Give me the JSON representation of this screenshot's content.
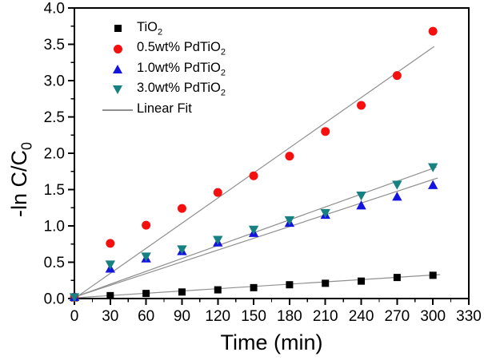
{
  "chart_data": {
    "type": "scatter",
    "title": "",
    "xlabel": "Time (min)",
    "ylabel_pre": "-ln C/C",
    "ylabel_sub": "0",
    "xlim": [
      0,
      330
    ],
    "ylim": [
      0,
      4.0
    ],
    "x_major_step": 30,
    "x_minor_step": 15,
    "y_major_step": 0.5,
    "y_minor_step": 0.25,
    "x_tick_labels": [
      "0",
      "30",
      "60",
      "90",
      "120",
      "150",
      "180",
      "210",
      "240",
      "270",
      "300",
      "330"
    ],
    "y_tick_labels": [
      "0.0",
      "0.5",
      "1.0",
      "1.5",
      "2.0",
      "2.5",
      "3.0",
      "3.5",
      "4.0"
    ],
    "grid": false,
    "legend_position": "upper-left-inside",
    "axis_color": "#000000",
    "fit_line_color": "#8f8f8f",
    "x": [
      0,
      30,
      60,
      90,
      120,
      150,
      180,
      210,
      240,
      270,
      300
    ],
    "series": [
      {
        "name": "TiO2",
        "marker": "square",
        "color": "#000000",
        "values": [
          0.01,
          0.04,
          0.07,
          0.09,
          0.12,
          0.15,
          0.19,
          0.21,
          0.24,
          0.29,
          0.32
        ]
      },
      {
        "name": "0.5wt% PdTiO2",
        "marker": "circle",
        "color": "#f50f0f",
        "values": [
          0.02,
          0.76,
          1.01,
          1.24,
          1.46,
          1.69,
          1.96,
          2.3,
          2.66,
          3.07,
          3.68
        ]
      },
      {
        "name": "1.0wt% PdTiO2",
        "marker": "triangle-up",
        "color": "#1414e1",
        "values": [
          0.02,
          0.41,
          0.55,
          0.65,
          0.77,
          0.9,
          1.04,
          1.15,
          1.28,
          1.4,
          1.56
        ]
      },
      {
        "name": "3.0wt% PdTiO2",
        "marker": "triangle-down",
        "color": "#178080",
        "values": [
          0.02,
          0.47,
          0.58,
          0.68,
          0.81,
          0.95,
          1.08,
          1.18,
          1.42,
          1.57,
          1.81
        ]
      }
    ],
    "linear_fits": [
      {
        "series": "TiO2",
        "x1": 0,
        "y1": 0.01,
        "x2": 306,
        "y2": 0.33
      },
      {
        "series": "0.5wt% PdTiO2",
        "x1": 0,
        "y1": 0.0,
        "x2": 301,
        "y2": 3.47
      },
      {
        "series": "1.0wt% PdTiO2",
        "x1": 0,
        "y1": 0.02,
        "x2": 304,
        "y2": 1.66
      },
      {
        "series": "3.0wt% PdTiO2",
        "x1": 0,
        "y1": 0.02,
        "x2": 303,
        "y2": 1.81
      }
    ],
    "legend": {
      "items": [
        {
          "label_pre": "TiO",
          "label_sub": "2",
          "marker": "square",
          "color": "#000000"
        },
        {
          "label_pre": "0.5wt% PdTiO",
          "label_sub": "2",
          "marker": "circle",
          "color": "#f50f0f"
        },
        {
          "label_pre": "1.0wt% PdTiO",
          "label_sub": "2",
          "marker": "triangle-up",
          "color": "#1414e1"
        },
        {
          "label_pre": "3.0wt% PdTiO",
          "label_sub": "2",
          "marker": "triangle-down",
          "color": "#178080"
        },
        {
          "label_pre": "Linear Fit",
          "label_sub": "",
          "marker": "line",
          "color": "#8f8f8f"
        }
      ]
    }
  }
}
